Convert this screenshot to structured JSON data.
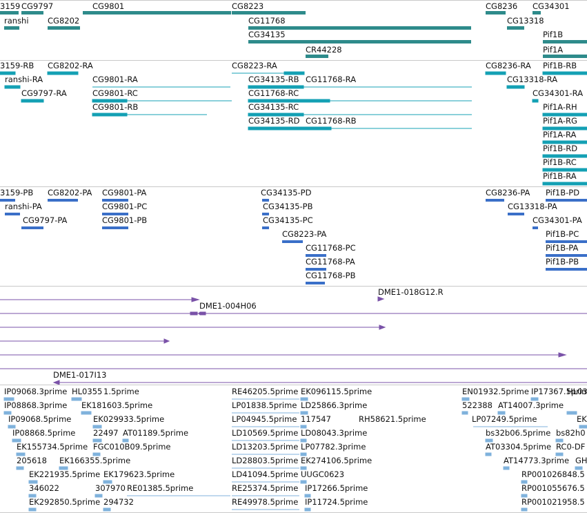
{
  "colors": {
    "gene": "#2e8b8b",
    "transcript": "#14a0b4",
    "protein": "#3a6fc8",
    "clone": "#7a52a8",
    "est": "#7fb2dc",
    "separator": "#c8c8c8",
    "background": "#ffffff"
  },
  "gene_track": {
    "labels": [
      "3159",
      "CG9797",
      "CG9801",
      "CG8223",
      "ranshi",
      "CG8202",
      "CG11768",
      "CG34135",
      "CR44228",
      "CG8236",
      "CG34301",
      "CG13318",
      "Pif1B",
      "Pif1A"
    ]
  },
  "transcript_track": {
    "labels": [
      "3159-RB",
      "CG8202-RA",
      "CG8223-RA",
      "CG8236-RA",
      "Pif1B-RB",
      "ranshi-RA",
      "CG9801-RA",
      "CG34135-RB",
      "CG11768-RA",
      "CG13318-RA",
      "CG9797-RA",
      "CG9801-RC",
      "CG11768-RC",
      "CG34301-RA",
      "CG9801-RB",
      "CG34135-RC",
      "Pif1A-RH",
      "CG34135-RD",
      "CG11768-RB",
      "Pif1A-RG",
      "Pif1A-RA",
      "Pif1B-RD",
      "Pif1B-RC",
      "Pif1B-RA"
    ]
  },
  "protein_track": {
    "labels": [
      "3159-PB",
      "CG8202-PA",
      "CG9801-PA",
      "CG34135-PD",
      "CG8236-PA",
      "Pif1B-PD",
      "ranshi-PA",
      "CG9801-PC",
      "CG34135-PB",
      "CG13318-PA",
      "CG9797-PA",
      "CG9801-PB",
      "CG34135-PC",
      "CG34301-PA",
      "CG8223-PA",
      "Pif1B-PC",
      "CG11768-PC",
      "Pif1B-PA",
      "CG11768-PA",
      "Pif1B-PB",
      "CG11768-PB"
    ]
  },
  "clone_track": {
    "labels": [
      "DME1-018G12.R",
      "DME1-004H06",
      "DME1-017I13"
    ]
  },
  "est_track": {
    "labels": [
      "IP09068.3prime",
      "HL0355",
      "1.5prime",
      "RE46205.5prime",
      "EK096115.5prime",
      "EN01932.5prime",
      "IP17367.5prime",
      "HL03",
      "IP08868.3prime",
      "EK181603.5prime",
      "LP01838.5prime",
      "LD25866.3prime",
      "522388",
      "AT14007.3prime",
      "IP09068.5prime",
      "EK029933.5prime",
      "LP04945.5prime",
      "117547",
      "RH58621.5prime",
      "LP07249.5prime",
      "EK",
      "IP08868.5prime",
      "22497",
      "AT01189.5prime",
      "LD10569.5prime",
      "LD08043.3prime",
      "bs32b06.5prime",
      "bs82h0",
      "EK155734.5prime",
      "FGC010B09.5prime",
      "LD13203.5prime",
      "LP07782.3prime",
      "AT03304.5prime",
      "RC0-DF",
      "205618",
      "EK166355.5prime",
      "LD28803.5prime",
      "EK274106.5prime",
      "AT14773.3prime",
      "GH",
      "EK221935.5prime",
      "EK179623.5prime",
      "LD41094.5prime",
      "UUGC0623",
      "RP001026848.5",
      "346022",
      "307970",
      "RE01385.5prime",
      "RE25374.5prime",
      "IP17266.5prime",
      "RP001055676.5",
      "EK292850.5prime",
      "294732",
      "RE49978.5prime",
      "IP11724.5prime",
      "RP001021958.5"
    ]
  }
}
